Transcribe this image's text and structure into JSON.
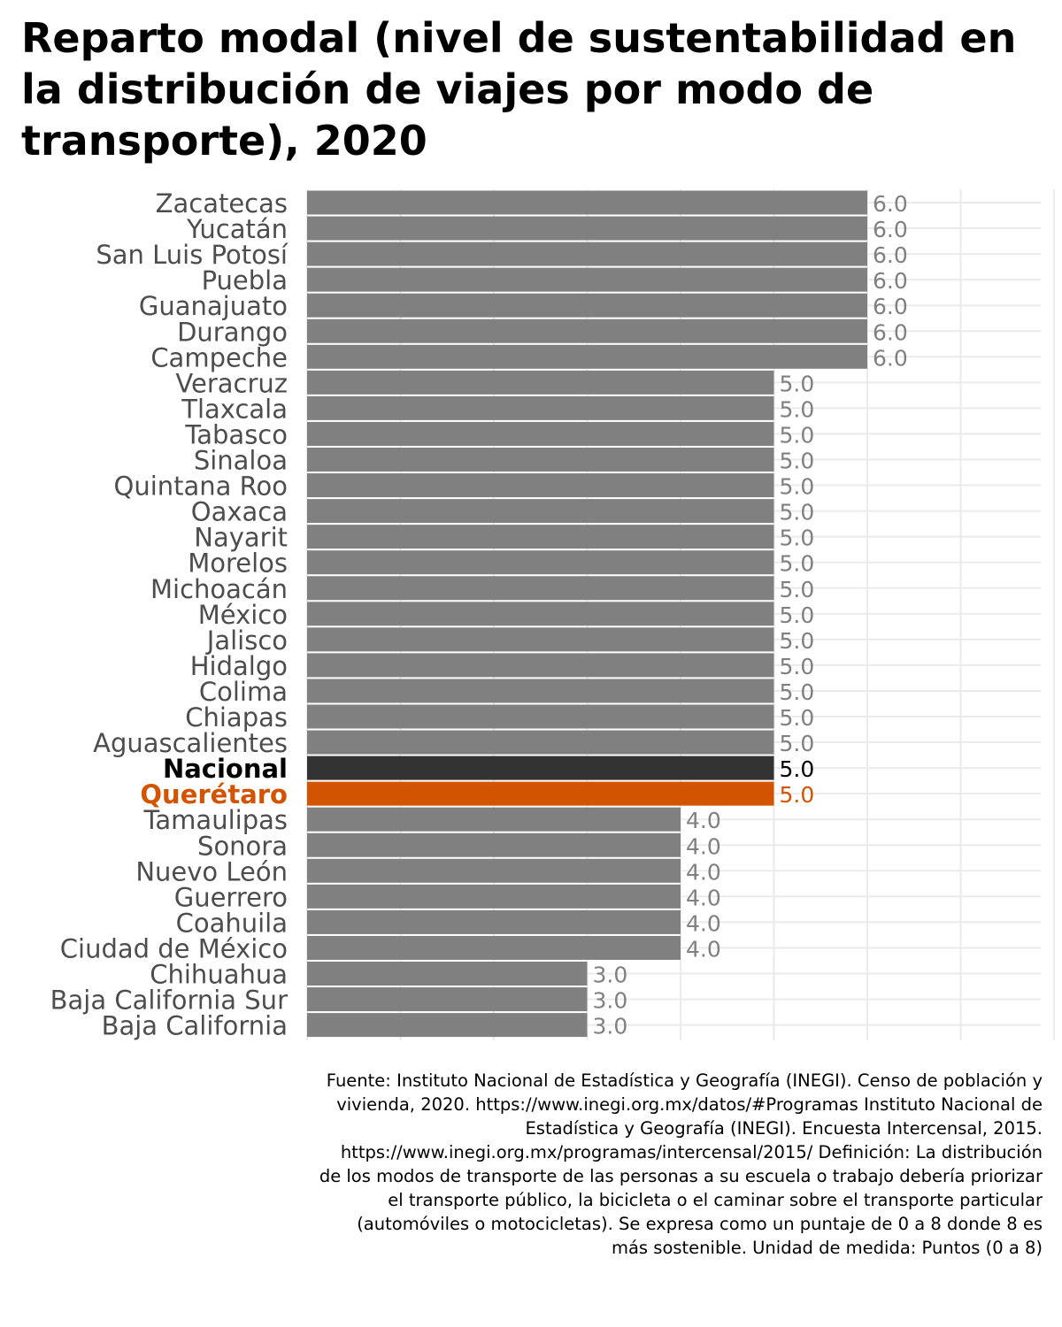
{
  "chart_data": {
    "type": "bar",
    "orientation": "horizontal",
    "title": "Reparto modal (nivel de sustentabilidad en la distribución de viajes por modo de transporte), 2020",
    "xlabel": "",
    "ylabel": "",
    "xlim": [
      0,
      8
    ],
    "grid": true,
    "categories": [
      "Zacatecas",
      "Yucatán",
      "San Luis Potosí",
      "Puebla",
      "Guanajuato",
      "Durango",
      "Campeche",
      "Veracruz",
      "Tlaxcala",
      "Tabasco",
      "Sinaloa",
      "Quintana Roo",
      "Oaxaca",
      "Nayarit",
      "Morelos",
      "Michoacán",
      "México",
      "Jalisco",
      "Hidalgo",
      "Colima",
      "Chiapas",
      "Aguascalientes",
      "Nacional",
      "Querétaro",
      "Tamaulipas",
      "Sonora",
      "Nuevo León",
      "Guerrero",
      "Coahuila",
      "Ciudad de México",
      "Chihuahua",
      "Baja California Sur",
      "Baja California"
    ],
    "values": [
      6,
      6,
      6,
      6,
      6,
      6,
      6,
      5,
      5,
      5,
      5,
      5,
      5,
      5,
      5,
      5,
      5,
      5,
      5,
      5,
      5,
      5,
      5,
      5,
      4,
      4,
      4,
      4,
      4,
      4,
      3,
      3,
      3
    ],
    "value_labels": [
      "6.0",
      "6.0",
      "6.0",
      "6.0",
      "6.0",
      "6.0",
      "6.0",
      "5.0",
      "5.0",
      "5.0",
      "5.0",
      "5.0",
      "5.0",
      "5.0",
      "5.0",
      "5.0",
      "5.0",
      "5.0",
      "5.0",
      "5.0",
      "5.0",
      "5.0",
      "5.0",
      "5.0",
      "4.0",
      "4.0",
      "4.0",
      "4.0",
      "4.0",
      "4.0",
      "3.0",
      "3.0",
      "3.0"
    ],
    "highlight": {
      "Nacional": "#333333",
      "Querétaro": "#d35400"
    },
    "colors": {
      "default_bar": "#808080",
      "default_label": "#4d4d4d",
      "value_label": "#808080",
      "grid": "#ebebeb"
    },
    "caption": "Fuente: Instituto Nacional de Estadística y Geografía (INEGI). Censo de población y vivienda, 2020. https://www.inegi.org.mx/datos/#Programas Instituto Nacional de Estadística y Geografía (INEGI). Encuesta Intercensal, 2015. https://www.inegi.org.mx/programas/intercensal/2015/ Definición: La distribución de los modos de transporte de las personas a su escuela o trabajo debería priorizar el transporte público, la bicicleta o el caminar sobre el transporte particular (automóviles o motocicletas). Se expresa como un puntaje de 0 a 8 donde 8 es más sostenible. Unidad de medida: Puntos (0 a 8)"
  }
}
